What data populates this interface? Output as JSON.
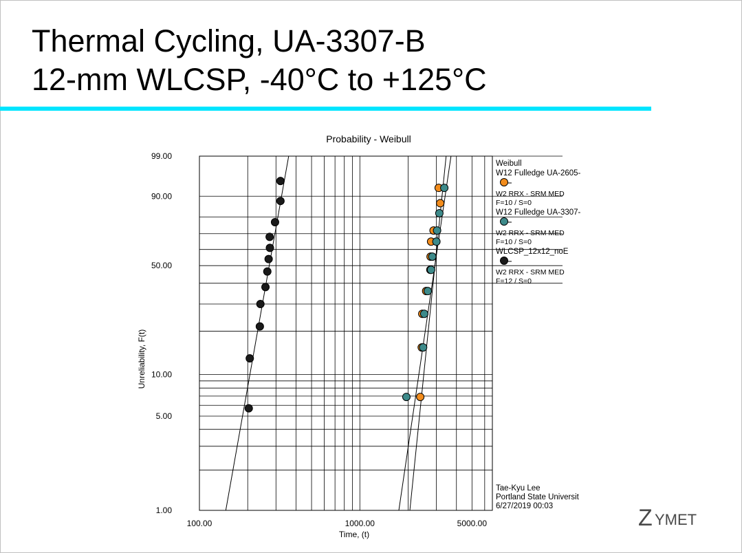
{
  "slide": {
    "title_line1": "Thermal Cycling, UA-3307-B",
    "title_line2": "12-mm WLCSP, -40°C to +125°C",
    "accent_color": "#00e5ff"
  },
  "logo": {
    "text_z": "Z",
    "text_rest": "YMET",
    "color": "#4a4a4a"
  },
  "chart_data": {
    "type": "scatter",
    "title": "Probability - Weibull",
    "xlabel": "Time, (t)",
    "ylabel": "Unreliability, F(t)",
    "x_scale": "log",
    "y_scale": "weibull",
    "xlim": [
      100,
      6700
    ],
    "ylim": [
      1,
      99
    ],
    "x_ticks": [
      {
        "value": 100,
        "label": "100.00"
      },
      {
        "value": 1000,
        "label": "1000.00"
      },
      {
        "value": 5000,
        "label": "5000.00"
      }
    ],
    "y_ticks": [
      {
        "value": 99,
        "label": "99.00"
      },
      {
        "value": 90,
        "label": "90.00"
      },
      {
        "value": 50,
        "label": "50.00"
      },
      {
        "value": 10,
        "label": "10.00"
      },
      {
        "value": 5,
        "label": "5.00"
      },
      {
        "value": 1,
        "label": "1.00"
      }
    ],
    "x_grid": [
      100,
      200,
      300,
      400,
      500,
      600,
      700,
      800,
      900,
      1000,
      2000,
      3000,
      4000,
      5000,
      6000
    ],
    "y_grid": [
      1,
      2,
      3,
      4,
      5,
      6,
      7,
      8,
      9,
      10,
      20,
      30,
      40,
      50,
      60,
      70,
      80,
      90,
      99
    ],
    "grid": true,
    "legend_position": "right",
    "legend_header": "Weibull",
    "series": [
      {
        "name": "W12 Fulledge UA-2605-",
        "legend_lines": [
          "W2 RRX - SRM MED",
          "F=10 / S=0"
        ],
        "color": "#f28c1c",
        "points": [
          {
            "x": 2380,
            "y": 6.9
          },
          {
            "x": 2430,
            "y": 15.5
          },
          {
            "x": 2450,
            "y": 26
          },
          {
            "x": 2590,
            "y": 36
          },
          {
            "x": 2750,
            "y": 47.5
          },
          {
            "x": 2760,
            "y": 55.5
          },
          {
            "x": 2780,
            "y": 65
          },
          {
            "x": 2880,
            "y": 72
          },
          {
            "x": 3170,
            "y": 87
          },
          {
            "x": 3100,
            "y": 93
          }
        ],
        "fit_line": [
          {
            "x": 2050,
            "y": 1
          },
          {
            "x": 3450,
            "y": 99
          }
        ]
      },
      {
        "name": "W12 Fulledge UA-3307-",
        "legend_lines": [
          "W2 RRX - SRM MED",
          "F=10 / S=0"
        ],
        "color": "#3d8a8a",
        "points": [
          {
            "x": 1950,
            "y": 6.9
          },
          {
            "x": 2480,
            "y": 15.5
          },
          {
            "x": 2520,
            "y": 26
          },
          {
            "x": 2650,
            "y": 36
          },
          {
            "x": 2780,
            "y": 47.5
          },
          {
            "x": 2830,
            "y": 55.5
          },
          {
            "x": 3000,
            "y": 65
          },
          {
            "x": 3030,
            "y": 72
          },
          {
            "x": 3130,
            "y": 82
          },
          {
            "x": 3360,
            "y": 93
          }
        ],
        "fit_line": [
          {
            "x": 1750,
            "y": 1
          },
          {
            "x": 3700,
            "y": 99
          }
        ]
      },
      {
        "name": "WLCSP_12x12_noE",
        "legend_lines": [
          "W2 RRX - SRM MED",
          "F=12 / S=0"
        ],
        "color": "#1a1a1a",
        "points": [
          {
            "x": 203,
            "y": 5.7
          },
          {
            "x": 206,
            "y": 13
          },
          {
            "x": 238,
            "y": 21.5
          },
          {
            "x": 240,
            "y": 30
          },
          {
            "x": 258,
            "y": 38
          },
          {
            "x": 265,
            "y": 46.5
          },
          {
            "x": 270,
            "y": 54
          },
          {
            "x": 275,
            "y": 61
          },
          {
            "x": 274,
            "y": 68
          },
          {
            "x": 296,
            "y": 77
          },
          {
            "x": 320,
            "y": 88
          },
          {
            "x": 320,
            "y": 95
          }
        ],
        "fit_line": [
          {
            "x": 146,
            "y": 1
          },
          {
            "x": 360,
            "y": 99
          }
        ]
      }
    ],
    "annotation": [
      "Tae-Kyu Lee",
      "Portland State Universit",
      "6/27/2019 00:03"
    ]
  }
}
